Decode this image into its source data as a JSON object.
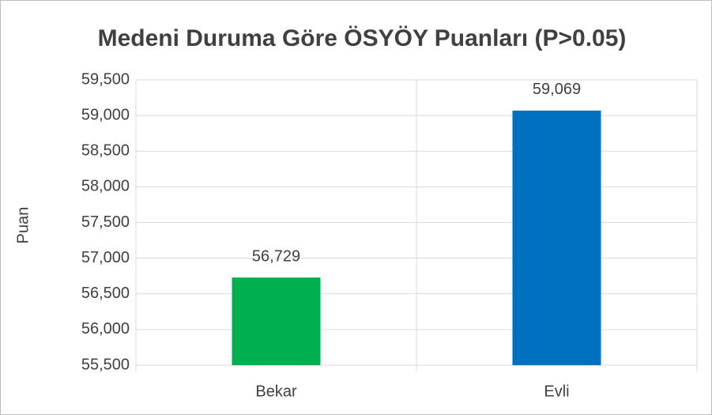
{
  "chart_data": {
    "type": "bar",
    "title": "Medeni Duruma Göre ÖSYÖY Puanları (P>0.05)",
    "y_label": "Puan",
    "categories": [
      "Bekar",
      "Evli"
    ],
    "values": [
      56.729,
      59.069
    ],
    "value_labels": [
      "56,729",
      "59,069"
    ],
    "colors": [
      "#00b050",
      "#0070c0"
    ],
    "ylim": [
      55.5,
      59.5
    ],
    "yticks": [
      {
        "value": 55.5,
        "label": "55,500"
      },
      {
        "value": 56,
        "label": "56,000"
      },
      {
        "value": 56.5,
        "label": "56,500"
      },
      {
        "value": 57,
        "label": "57,000"
      },
      {
        "value": 57.5,
        "label": "57,500"
      },
      {
        "value": 58,
        "label": "58,000"
      },
      {
        "value": 58.5,
        "label": "58,500"
      },
      {
        "value": 59,
        "label": "59,000"
      },
      {
        "value": 59.5,
        "label": "59,500"
      }
    ],
    "grid": true
  }
}
